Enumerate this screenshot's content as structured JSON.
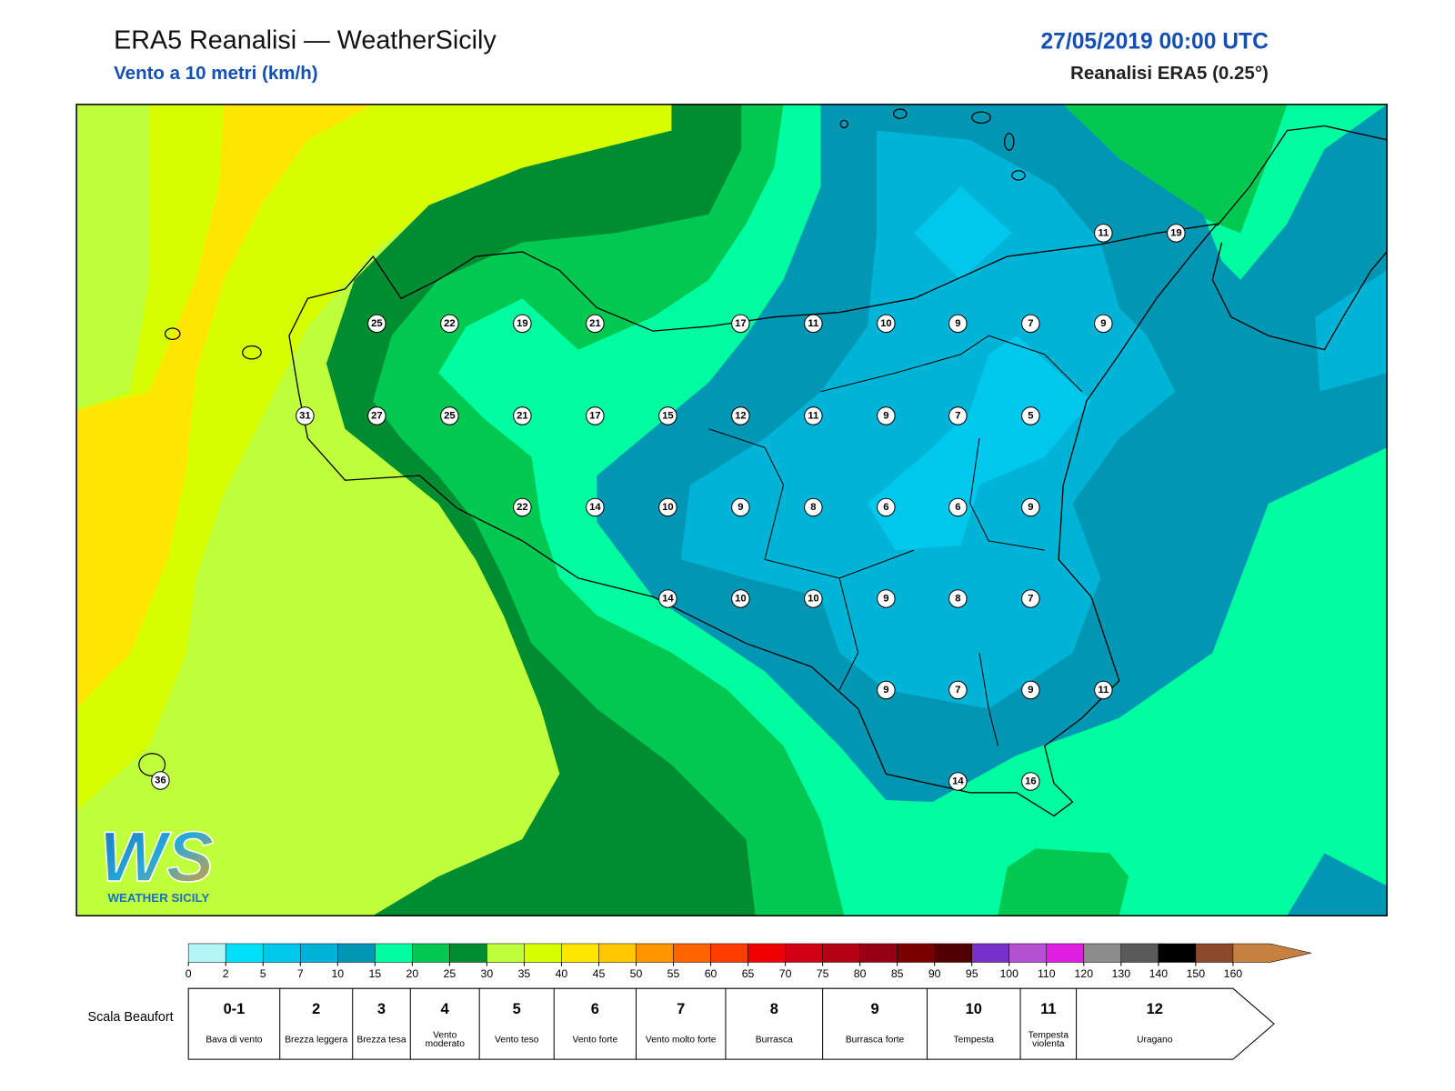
{
  "header": {
    "title": "ERA5 Reanalisi — WeatherSicily",
    "subtitle": "Vento a 10 metri (km/h)",
    "date": "27/05/2019 00:00 UTC",
    "source": "Reanalisi ERA5 (0.25°)"
  },
  "stations": [
    25,
    22,
    19,
    21,
    17,
    11,
    10,
    9,
    7,
    9,
    11,
    19,
    31,
    27,
    25,
    21,
    17,
    15,
    12,
    11,
    9,
    7,
    5,
    22,
    14,
    10,
    9,
    8,
    6,
    6,
    9,
    14,
    10,
    10,
    9,
    8,
    7,
    9,
    7,
    9,
    11,
    14,
    16,
    36
  ],
  "logo": {
    "mark": "WS",
    "name": "WEATHER SICILY"
  },
  "colorbar": {
    "ticks": [
      0,
      2,
      5,
      7,
      10,
      15,
      20,
      25,
      30,
      35,
      40,
      45,
      50,
      55,
      60,
      65,
      70,
      75,
      80,
      85,
      90,
      95,
      100,
      110,
      120,
      130,
      140,
      150,
      160
    ],
    "colors": [
      "#b4f5fa",
      "#00e1f8",
      "#00c8ec",
      "#00b4d8",
      "#0096b4",
      "#00fca0",
      "#00c850",
      "#008c30",
      "#c0ff3c",
      "#d8ff00",
      "#ffe600",
      "#ffc800",
      "#ff9600",
      "#ff6400",
      "#ff3c00",
      "#f00000",
      "#d20014",
      "#b40014",
      "#960014",
      "#780000",
      "#500000",
      "#7830c8",
      "#b450d2",
      "#e01ee0",
      "#8c8c8c",
      "#5a5a5a",
      "#000000",
      "#8c4a28",
      "#c88040"
    ]
  },
  "beaufort": {
    "label": "Scala Beaufort",
    "entries": [
      {
        "force": "0-1",
        "label": "Bava di vento"
      },
      {
        "force": 2,
        "label": "Brezza leggera"
      },
      {
        "force": 3,
        "label": "Brezza tesa"
      },
      {
        "force": 4,
        "label": "Vento moderato"
      },
      {
        "force": 5,
        "label": "Vento teso"
      },
      {
        "force": 6,
        "label": "Vento forte"
      },
      {
        "force": 7,
        "label": "Vento molto forte"
      },
      {
        "force": 8,
        "label": "Burrasca"
      },
      {
        "force": 9,
        "label": "Burrasca forte"
      },
      {
        "force": 10,
        "label": "Tempesta"
      },
      {
        "force": 11,
        "label": "Tempesta violenta"
      },
      {
        "force": 12,
        "label": "Uragano"
      }
    ]
  }
}
